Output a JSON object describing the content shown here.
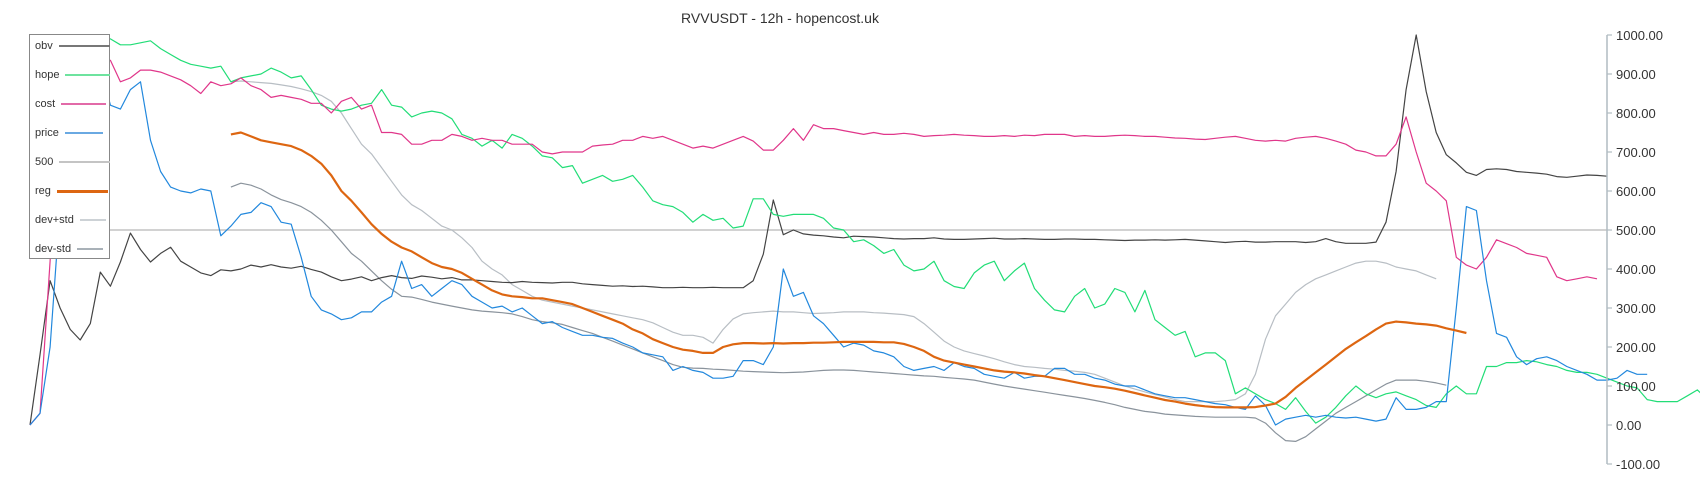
{
  "chart_data": {
    "type": "line",
    "title": "RVVUSDT - 12h - hopencost.uk",
    "xlabel": "",
    "ylabel": "",
    "ylim": [
      -100,
      1000
    ],
    "yticks": [
      "1000.00",
      "900.00",
      "800.00",
      "700.00",
      "600.00",
      "500.00",
      "400.00",
      "300.00",
      "200.00",
      "100.00",
      "0.00",
      "-100.00"
    ],
    "ytick_values": [
      1000,
      900,
      800,
      700,
      600,
      500,
      400,
      300,
      200,
      100,
      0,
      -100
    ],
    "axis_position": "right",
    "grid": false,
    "legend_position": "upper-left",
    "n_points": 158,
    "series": [
      {
        "name": "obv",
        "color": "#444444",
        "width": 1.2,
        "start": 0,
        "values": [
          0,
          180,
          370,
          300,
          245,
          218,
          260,
          392,
          356,
          418,
          492,
          450,
          418,
          440,
          456,
          420,
          405,
          390,
          383,
          398,
          395,
          400,
          410,
          405,
          411,
          405,
          402,
          407,
          399,
          392,
          380,
          370,
          374,
          380,
          370,
          378,
          383,
          378,
          376,
          382,
          379,
          375,
          378,
          372,
          372,
          370,
          368,
          366,
          365,
          368,
          366,
          365,
          364,
          366,
          366,
          362,
          360,
          358,
          356,
          357,
          355,
          356,
          354,
          352,
          352,
          353,
          352,
          352,
          353,
          352,
          352,
          352,
          370,
          438,
          577,
          488,
          500,
          490,
          487,
          485,
          482,
          480,
          484,
          483,
          482,
          480,
          478,
          477,
          478,
          478,
          480,
          477,
          476,
          476,
          477,
          478,
          479,
          477,
          477,
          478,
          477,
          476,
          476,
          477,
          477,
          476,
          476,
          475,
          474,
          473,
          474,
          474,
          475,
          474,
          475,
          476,
          474,
          472,
          470,
          468,
          470,
          471,
          469,
          469,
          470,
          470,
          470,
          468,
          470,
          478,
          470,
          466,
          466,
          466,
          469,
          520,
          650,
          860,
          1000,
          855,
          750,
          693,
          672,
          648,
          640,
          655,
          657,
          655,
          650,
          648,
          646,
          643,
          637,
          635,
          638,
          641,
          640,
          638
        ]
      },
      {
        "name": "hope",
        "color": "#22dd77",
        "width": 1.2,
        "start": 5,
        "values": [
          975,
          1000,
          1000,
          990,
          975,
          975,
          980,
          985,
          965,
          950,
          935,
          925,
          920,
          915,
          920,
          880,
          890,
          895,
          900,
          915,
          905,
          890,
          895,
          860,
          820,
          810,
          805,
          810,
          820,
          825,
          860,
          820,
          815,
          790,
          800,
          805,
          800,
          785,
          745,
          735,
          715,
          730,
          710,
          745,
          735,
          715,
          690,
          685,
          660,
          665,
          620,
          630,
          640,
          625,
          630,
          640,
          610,
          575,
          565,
          560,
          545,
          520,
          540,
          525,
          530,
          505,
          510,
          580,
          580,
          540,
          535,
          540,
          540,
          540,
          530,
          505,
          500,
          470,
          475,
          460,
          440,
          450,
          410,
          395,
          400,
          420,
          370,
          355,
          350,
          390,
          410,
          420,
          370,
          395,
          415,
          350,
          320,
          295,
          290,
          330,
          350,
          300,
          310,
          350,
          340,
          290,
          345,
          270,
          250,
          230,
          240,
          175,
          185,
          185,
          165,
          80,
          95,
          80,
          65,
          55,
          40,
          70,
          35,
          5,
          20,
          45,
          75,
          100,
          80,
          70,
          80,
          85,
          75,
          65,
          50,
          45,
          80,
          100,
          80,
          80,
          150,
          150,
          160,
          160,
          165,
          162,
          155,
          150,
          140,
          135,
          135,
          130,
          120,
          110,
          100,
          95,
          65,
          60,
          60,
          60,
          75,
          90,
          65
        ]
      },
      {
        "name": "cost",
        "color": "#e0368a",
        "width": 1.2,
        "start": 0,
        "values": [
          0,
          30,
          420,
          880,
          920,
          930,
          960,
          940,
          935,
          880,
          890,
          910,
          910,
          905,
          895,
          885,
          870,
          850,
          880,
          870,
          875,
          890,
          870,
          860,
          840,
          845,
          840,
          835,
          825,
          825,
          800,
          830,
          840,
          810,
          820,
          750,
          750,
          745,
          720,
          720,
          730,
          730,
          745,
          740,
          730,
          735,
          730,
          730,
          720,
          720,
          720,
          700,
          695,
          700,
          700,
          700,
          715,
          718,
          720,
          730,
          730,
          740,
          735,
          740,
          730,
          720,
          710,
          715,
          710,
          720,
          730,
          740,
          728,
          705,
          705,
          730,
          760,
          730,
          770,
          760,
          760,
          755,
          750,
          745,
          750,
          745,
          745,
          748,
          745,
          740,
          742,
          743,
          745,
          743,
          742,
          740,
          740,
          742,
          740,
          743,
          742,
          745,
          745,
          745,
          740,
          742,
          740,
          740,
          742,
          743,
          742,
          740,
          740,
          738,
          736,
          735,
          733,
          732,
          735,
          738,
          740,
          735,
          730,
          728,
          730,
          728,
          735,
          738,
          740,
          735,
          728,
          720,
          705,
          700,
          690,
          690,
          720,
          790,
          700,
          620,
          600,
          575,
          430,
          410,
          400,
          430,
          475,
          465,
          455,
          440,
          435,
          430,
          380,
          370,
          375,
          380,
          375
        ]
      },
      {
        "name": "price",
        "color": "#2288dd",
        "width": 1.2,
        "start": 0,
        "values": [
          0,
          30,
          200,
          560,
          720,
          950,
          1000,
          920,
          820,
          810,
          860,
          880,
          730,
          650,
          610,
          600,
          595,
          605,
          600,
          485,
          510,
          540,
          545,
          570,
          560,
          520,
          515,
          430,
          330,
          295,
          285,
          270,
          275,
          290,
          290,
          315,
          330,
          420,
          350,
          360,
          330,
          350,
          370,
          360,
          330,
          315,
          300,
          305,
          290,
          300,
          280,
          260,
          265,
          250,
          240,
          230,
          230,
          225,
          222,
          210,
          200,
          185,
          180,
          175,
          140,
          150,
          140,
          135,
          120,
          120,
          125,
          165,
          165,
          155,
          200,
          400,
          330,
          340,
          280,
          260,
          230,
          200,
          210,
          205,
          190,
          185,
          175,
          150,
          140,
          145,
          150,
          140,
          160,
          150,
          145,
          130,
          125,
          120,
          135,
          120,
          125,
          125,
          145,
          145,
          130,
          130,
          120,
          115,
          105,
          100,
          100,
          90,
          80,
          75,
          70,
          70,
          65,
          60,
          55,
          52,
          45,
          40,
          75,
          50,
          0,
          15,
          20,
          25,
          20,
          25,
          20,
          18,
          20,
          15,
          10,
          15,
          70,
          40,
          40,
          45,
          60,
          60,
          300,
          560,
          550,
          370,
          235,
          225,
          175,
          155,
          170,
          175,
          165,
          150,
          140,
          130,
          115,
          115,
          120,
          140,
          130,
          130
        ]
      },
      {
        "name": "500",
        "color": "#c4c4c4",
        "width": 1.6,
        "start": 0,
        "values": [
          500,
          500,
          500,
          500,
          500,
          500,
          500,
          500,
          500,
          500,
          500,
          500,
          500,
          500,
          500,
          500,
          500,
          500,
          500,
          500,
          500,
          500,
          500,
          500,
          500,
          500,
          500,
          500,
          500,
          500,
          500,
          500,
          500,
          500,
          500,
          500,
          500,
          500,
          500,
          500,
          500,
          500,
          500,
          500,
          500,
          500,
          500,
          500,
          500,
          500,
          500,
          500,
          500,
          500,
          500,
          500,
          500,
          500,
          500,
          500,
          500,
          500,
          500,
          500,
          500,
          500,
          500,
          500,
          500,
          500,
          500,
          500,
          500,
          500,
          500,
          500,
          500,
          500,
          500,
          500,
          500,
          500,
          500,
          500,
          500,
          500,
          500,
          500,
          500,
          500,
          500,
          500,
          500,
          500,
          500,
          500,
          500,
          500,
          500,
          500,
          500,
          500,
          500,
          500,
          500,
          500,
          500,
          500,
          500,
          500,
          500,
          500,
          500,
          500,
          500,
          500,
          500,
          500,
          500,
          500,
          500,
          500,
          500,
          500,
          500,
          500,
          500,
          500,
          500,
          500,
          500,
          500,
          500,
          500,
          500,
          500,
          500,
          500,
          500,
          500,
          500,
          500,
          500,
          500,
          500,
          500,
          500,
          500,
          500,
          500,
          500,
          500,
          500,
          500,
          500,
          500,
          500,
          500
        ]
      },
      {
        "name": "reg",
        "color": "#dd6611",
        "width": 2.2,
        "start": 20,
        "values": [
          745,
          750,
          740,
          730,
          725,
          720,
          715,
          705,
          690,
          670,
          640,
          600,
          575,
          545,
          515,
          490,
          470,
          455,
          445,
          430,
          415,
          405,
          400,
          390,
          375,
          360,
          345,
          335,
          330,
          328,
          325,
          325,
          320,
          315,
          310,
          300,
          290,
          280,
          270,
          260,
          245,
          235,
          220,
          210,
          200,
          193,
          190,
          185,
          185,
          200,
          207,
          210,
          210,
          209,
          210,
          209,
          210,
          210,
          211,
          211,
          212,
          213,
          213,
          213,
          213,
          212,
          212,
          208,
          200,
          190,
          175,
          165,
          160,
          155,
          150,
          145,
          140,
          137,
          135,
          132,
          128,
          125,
          120,
          115,
          110,
          105,
          100,
          97,
          93,
          88,
          82,
          76,
          70,
          64,
          60,
          55,
          51,
          48,
          46,
          45,
          45,
          45,
          46,
          50,
          55,
          72,
          95,
          115,
          135,
          155,
          175,
          195,
          212,
          228,
          245,
          260,
          265,
          263,
          260,
          258,
          255,
          248,
          242,
          236
        ]
      },
      {
        "name": "dev+std",
        "color": "#b8bec4",
        "width": 1.2,
        "start": 20,
        "values": [
          880,
          882,
          880,
          878,
          876,
          872,
          868,
          862,
          855,
          845,
          830,
          800,
          760,
          720,
          695,
          660,
          625,
          590,
          565,
          550,
          530,
          510,
          500,
          480,
          455,
          420,
          400,
          385,
          360,
          345,
          330,
          320,
          315,
          310,
          305,
          300,
          295,
          290,
          285,
          280,
          275,
          270,
          262,
          250,
          238,
          230,
          230,
          225,
          210,
          245,
          272,
          285,
          288,
          290,
          292,
          290,
          290,
          288,
          286,
          287,
          288,
          290,
          290,
          290,
          288,
          287,
          285,
          283,
          278,
          260,
          238,
          215,
          200,
          190,
          183,
          177,
          170,
          162,
          155,
          150,
          148,
          145,
          143,
          140,
          138,
          135,
          130,
          120,
          110,
          100,
          92,
          85,
          78,
          72,
          65,
          60,
          60,
          60,
          60,
          62,
          65,
          80,
          130,
          220,
          280,
          310,
          340,
          360,
          375,
          385,
          395,
          405,
          415,
          420,
          420,
          415,
          405,
          400,
          395,
          385,
          375
        ]
      },
      {
        "name": "dev-std",
        "color": "#8a939c",
        "width": 1.2,
        "start": 20,
        "values": [
          610,
          620,
          615,
          605,
          590,
          578,
          570,
          560,
          545,
          525,
          500,
          470,
          440,
          420,
          395,
          370,
          348,
          330,
          328,
          322,
          315,
          310,
          305,
          300,
          295,
          292,
          290,
          288,
          285,
          278,
          270,
          265,
          262,
          258,
          250,
          242,
          235,
          225,
          215,
          205,
          195,
          185,
          175,
          165,
          155,
          148,
          146,
          145,
          143,
          142,
          140,
          138,
          137,
          136,
          135,
          134,
          135,
          136,
          138,
          140,
          141,
          141,
          140,
          138,
          136,
          134,
          132,
          130,
          128,
          126,
          125,
          122,
          120,
          118,
          115,
          110,
          105,
          100,
          96,
          92,
          88,
          84,
          80,
          76,
          72,
          68,
          63,
          58,
          52,
          45,
          40,
          35,
          32,
          28,
          26,
          24,
          22,
          21,
          20,
          20,
          20,
          20,
          18,
          5,
          -20,
          -40,
          -42,
          -30,
          -10,
          10,
          30,
          45,
          60,
          75,
          90,
          105,
          115,
          115,
          115,
          112,
          108,
          102
        ]
      }
    ]
  }
}
